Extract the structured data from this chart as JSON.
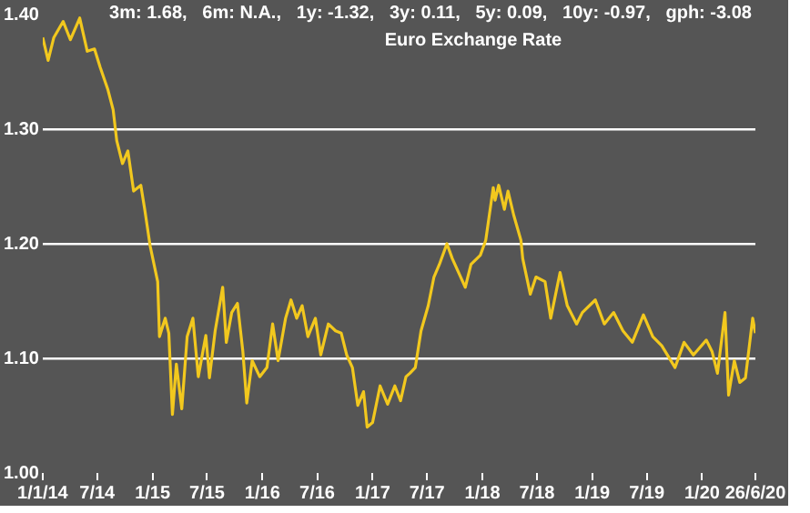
{
  "chart_data": {
    "type": "line",
    "title": "Euro Exchange Rate",
    "subtitle": "3m: 1.68,   6m: N.A.,   1y: -1.32,   3y: 0.11,   5y: 0.09,   10y: -0.97,   gph: -3.08",
    "x": [
      "2014-01-01",
      "2014-01-19",
      "2014-02-07",
      "2014-03-10",
      "2014-04-03",
      "2014-05-04",
      "2014-05-29",
      "2014-06-22",
      "2014-07-11",
      "2014-08-05",
      "2014-08-23",
      "2014-09-04",
      "2014-09-23",
      "2014-10-11",
      "2014-10-30",
      "2014-11-23",
      "2014-12-06",
      "2014-12-24",
      "2015-01-18",
      "2015-01-24",
      "2015-02-12",
      "2015-02-24",
      "2015-03-08",
      "2015-03-21",
      "2015-04-08",
      "2015-04-26",
      "2015-05-15",
      "2015-06-02",
      "2015-06-27",
      "2015-07-09",
      "2015-07-28",
      "2015-08-22",
      "2015-09-03",
      "2015-09-21",
      "2015-10-10",
      "2015-10-28",
      "2015-11-10",
      "2015-11-28",
      "2015-12-23",
      "2016-01-16",
      "2016-02-04",
      "2016-02-22",
      "2016-03-18",
      "2016-04-05",
      "2016-04-24",
      "2016-05-12",
      "2016-05-31",
      "2016-06-25",
      "2016-07-13",
      "2016-08-07",
      "2016-08-31",
      "2016-09-19",
      "2016-10-07",
      "2016-10-26",
      "2016-11-13",
      "2016-12-02",
      "2016-12-14",
      "2017-01-01",
      "2017-01-26",
      "2017-02-20",
      "2017-03-16",
      "2017-04-04",
      "2017-04-22",
      "2017-05-05",
      "2017-05-23",
      "2017-06-11",
      "2017-07-05",
      "2017-07-24",
      "2017-08-11",
      "2017-09-05",
      "2017-09-23",
      "2017-11-05",
      "2017-11-24",
      "2017-12-25",
      "2018-01-12",
      "2018-02-06",
      "2018-02-12",
      "2018-02-24",
      "2018-03-15",
      "2018-03-27",
      "2018-04-15",
      "2018-05-09",
      "2018-05-15",
      "2018-06-09",
      "2018-06-28",
      "2018-07-28",
      "2018-08-16",
      "2018-09-16",
      "2018-10-10",
      "2018-11-10",
      "2018-11-29",
      "2019-01-11",
      "2019-02-10",
      "2019-03-13",
      "2019-04-13",
      "2019-05-14",
      "2019-06-20",
      "2019-07-21",
      "2019-08-20",
      "2019-10-03",
      "2019-11-02",
      "2019-12-03",
      "2020-01-15",
      "2020-02-03",
      "2020-02-21",
      "2020-03-17",
      "2020-03-29",
      "2020-04-17",
      "2020-05-05",
      "2020-05-24",
      "2020-06-17",
      "2020-06-26"
    ],
    "series": [
      {
        "color": "#f2c81e",
        "values": [
          1.38,
          1.36,
          1.38,
          1.394,
          1.378,
          1.397,
          1.368,
          1.37,
          1.354,
          1.335,
          1.317,
          1.29,
          1.27,
          1.281,
          1.246,
          1.251,
          1.23,
          1.198,
          1.167,
          1.119,
          1.135,
          1.122,
          1.051,
          1.095,
          1.056,
          1.119,
          1.135,
          1.084,
          1.12,
          1.083,
          1.124,
          1.162,
          1.114,
          1.14,
          1.148,
          1.106,
          1.061,
          1.098,
          1.084,
          1.092,
          1.13,
          1.098,
          1.135,
          1.151,
          1.135,
          1.146,
          1.119,
          1.135,
          1.103,
          1.13,
          1.124,
          1.122,
          1.103,
          1.092,
          1.059,
          1.071,
          1.04,
          1.044,
          1.076,
          1.06,
          1.076,
          1.063,
          1.084,
          1.087,
          1.092,
          1.124,
          1.146,
          1.171,
          1.182,
          1.2,
          1.187,
          1.162,
          1.182,
          1.19,
          1.203,
          1.249,
          1.238,
          1.251,
          1.23,
          1.246,
          1.225,
          1.203,
          1.187,
          1.156,
          1.171,
          1.167,
          1.135,
          1.175,
          1.146,
          1.13,
          1.14,
          1.151,
          1.13,
          1.14,
          1.124,
          1.114,
          1.138,
          1.119,
          1.111,
          1.092,
          1.114,
          1.103,
          1.116,
          1.106,
          1.087,
          1.14,
          1.068,
          1.098,
          1.079,
          1.083,
          1.135,
          1.122
        ]
      }
    ],
    "xlim": [
      "2014-01-01",
      "2020-06-26"
    ],
    "xticks": [
      {
        "value": "2014-01-01",
        "label": "1/1/14"
      },
      {
        "value": "2014-07-01",
        "label": "7/14"
      },
      {
        "value": "2015-01-01",
        "label": "1/15"
      },
      {
        "value": "2015-07-01",
        "label": "7/15"
      },
      {
        "value": "2016-01-01",
        "label": "1/16"
      },
      {
        "value": "2016-07-01",
        "label": "7/16"
      },
      {
        "value": "2017-01-01",
        "label": "1/17"
      },
      {
        "value": "2017-07-01",
        "label": "7/17"
      },
      {
        "value": "2018-01-01",
        "label": "1/18"
      },
      {
        "value": "2018-07-01",
        "label": "7/18"
      },
      {
        "value": "2019-01-01",
        "label": "1/19"
      },
      {
        "value": "2019-07-01",
        "label": "7/19"
      },
      {
        "value": "2020-01-01",
        "label": "1/20"
      },
      {
        "value": "2020-06-26",
        "label": "26/6/20"
      }
    ],
    "ylim": [
      1.0,
      1.4
    ],
    "yticks": [
      {
        "value": 1.0,
        "label": "1.00"
      },
      {
        "value": 1.1,
        "label": "1.10"
      },
      {
        "value": 1.2,
        "label": "1.20"
      },
      {
        "value": 1.3,
        "label": "1.30"
      },
      {
        "value": 1.4,
        "label": "1.40"
      }
    ],
    "grid": "y",
    "legend": false,
    "marker": "none",
    "line_style": "solid"
  }
}
